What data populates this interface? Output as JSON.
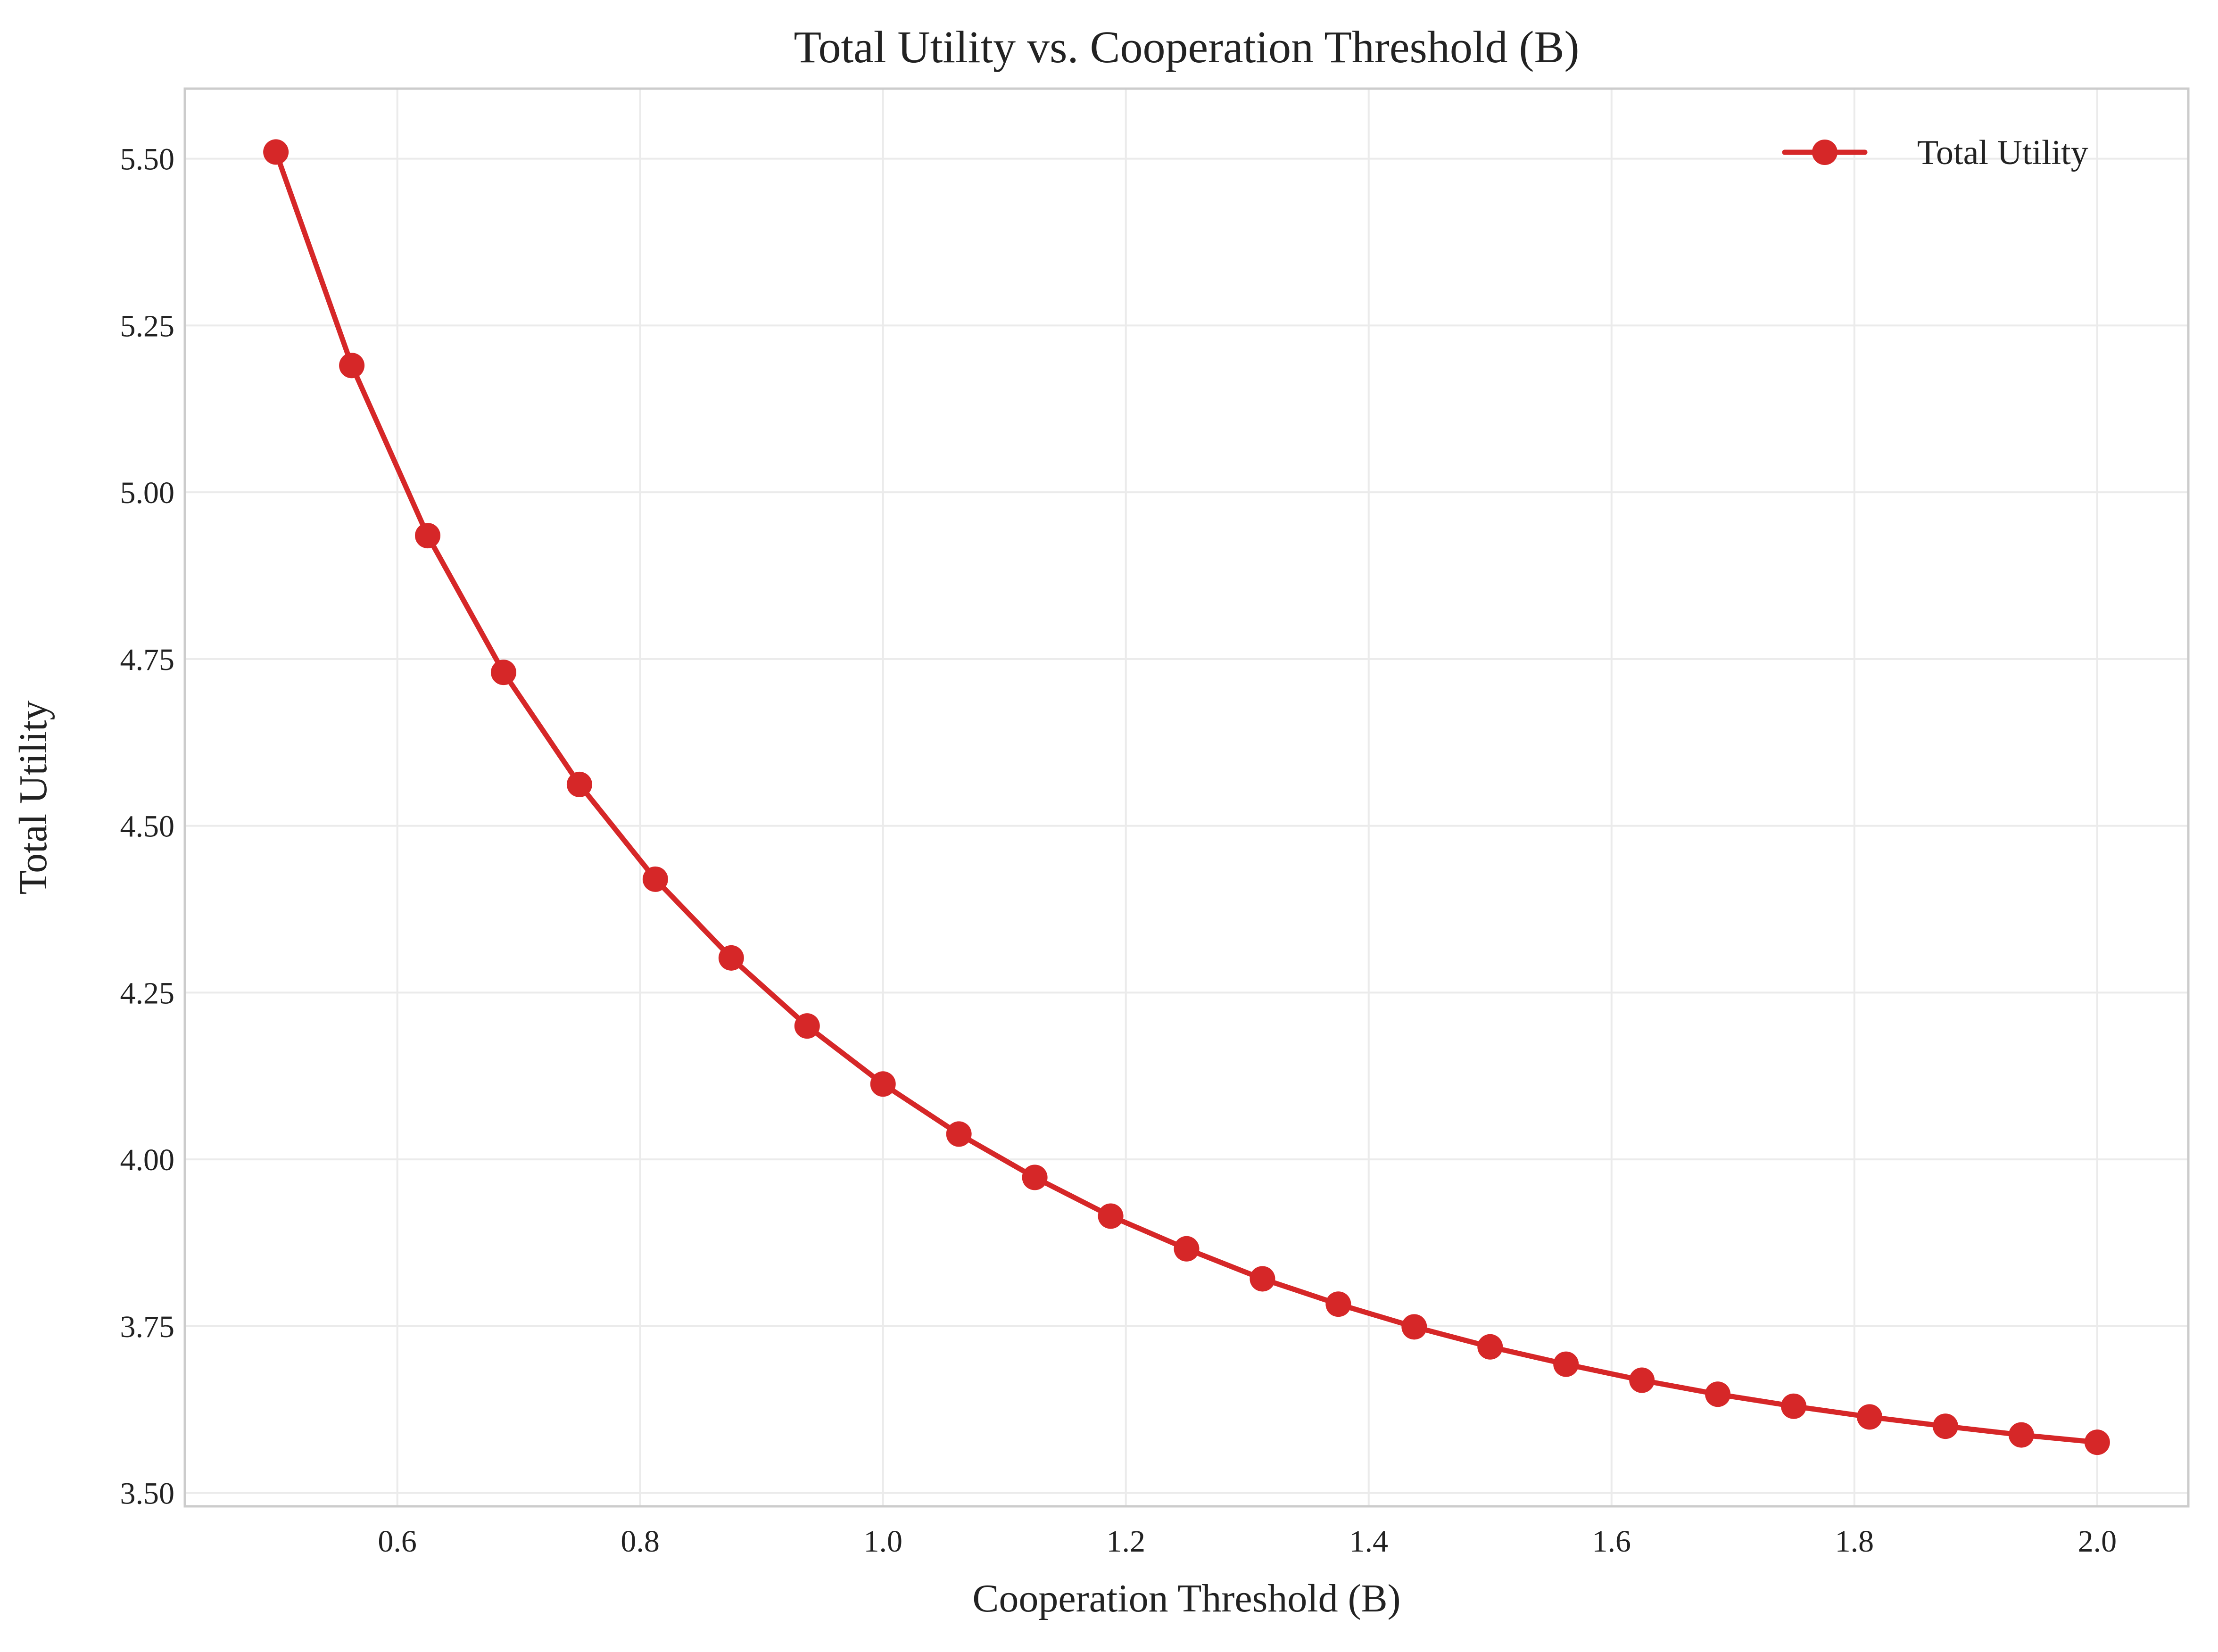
{
  "chart_data": {
    "type": "line",
    "title": "Total Utility vs. Cooperation Threshold (B)",
    "xlabel": "Cooperation Threshold (B)",
    "ylabel": "Total Utility",
    "xlim": [
      0.425,
      2.075
    ],
    "ylim": [
      3.48,
      5.605
    ],
    "x_ticks": [
      0.6,
      0.8,
      1.0,
      1.2,
      1.4,
      1.6,
      1.8,
      2.0
    ],
    "x_tick_labels": [
      "0.6",
      "0.8",
      "1.0",
      "1.2",
      "1.4",
      "1.6",
      "1.8",
      "2.0"
    ],
    "y_ticks": [
      3.5,
      3.75,
      4.0,
      4.25,
      4.5,
      4.75,
      5.0,
      5.25,
      5.5
    ],
    "y_tick_labels": [
      "3.50",
      "3.75",
      "4.00",
      "4.25",
      "4.50",
      "4.75",
      "5.00",
      "5.25",
      "5.50"
    ],
    "grid": true,
    "legend_position": "top-right",
    "series": [
      {
        "name": "Total Utility",
        "color": "#d62728",
        "marker": "circle",
        "x": [
          0.5,
          0.5625,
          0.625,
          0.6875,
          0.75,
          0.8125,
          0.875,
          0.9375,
          1.0,
          1.0625,
          1.125,
          1.1875,
          1.25,
          1.3125,
          1.375,
          1.4375,
          1.5,
          1.5625,
          1.625,
          1.6875,
          1.75,
          1.8125,
          1.875,
          1.9375,
          2.0
        ],
        "values": [
          5.51,
          5.19,
          4.935,
          4.73,
          4.562,
          4.42,
          4.302,
          4.2,
          4.113,
          4.038,
          3.973,
          3.915,
          3.866,
          3.821,
          3.783,
          3.749,
          3.719,
          3.693,
          3.669,
          3.648,
          3.63,
          3.614,
          3.6,
          3.587,
          3.576
        ]
      }
    ]
  }
}
